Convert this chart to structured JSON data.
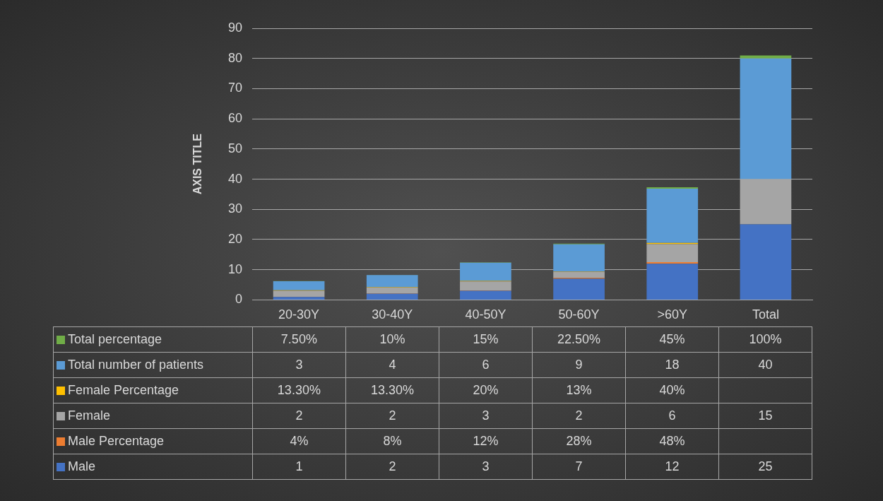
{
  "chart_data": {
    "type": "bar",
    "stacked": true,
    "ylabel": "AXIS TITLE",
    "categories": [
      "20-30Y",
      "30-40Y",
      "40-50Y",
      "50-60Y",
      ">60Y",
      "Total"
    ],
    "ylim": [
      0,
      90
    ],
    "yticks": [
      0,
      10,
      20,
      30,
      40,
      50,
      60,
      70,
      80,
      90
    ],
    "grid": "y",
    "legend": "bottom",
    "series": [
      {
        "name": "Male",
        "color": "#4472c4",
        "values": [
          1,
          2,
          3,
          7,
          12,
          25
        ],
        "value_labels": [
          "1",
          "2",
          "3",
          "7",
          "12",
          "25"
        ]
      },
      {
        "name": "Male Percentage",
        "color": "#ed7d31",
        "values": [
          0.04,
          0.08,
          0.12,
          0.28,
          0.48,
          null
        ],
        "value_labels": [
          "4%",
          "8%",
          "12%",
          "28%",
          "48%",
          null
        ]
      },
      {
        "name": "Female",
        "color": "#a5a5a5",
        "values": [
          2,
          2,
          3,
          2,
          6,
          15
        ],
        "value_labels": [
          "2",
          "2",
          "3",
          "2",
          "6",
          "15"
        ]
      },
      {
        "name": "Female Percentage",
        "color": "#ffc000",
        "values": [
          0.133,
          0.133,
          0.2,
          0.13,
          0.4,
          null
        ],
        "value_labels": [
          "13.30%",
          "13.30%",
          "20%",
          "13%",
          "40%",
          null
        ]
      },
      {
        "name": "Total number of patients",
        "color": "#5b9bd5",
        "values": [
          3,
          4,
          6,
          9,
          18,
          40
        ],
        "value_labels": [
          "3",
          "4",
          "6",
          "9",
          "18",
          "40"
        ]
      },
      {
        "name": "Total percentage",
        "color": "#70ad47",
        "values": [
          0.075,
          0.1,
          0.15,
          0.225,
          0.45,
          1
        ],
        "value_labels": [
          "7.50%",
          "10%",
          "15%",
          "22.50%",
          "45%",
          "100%"
        ]
      }
    ]
  }
}
